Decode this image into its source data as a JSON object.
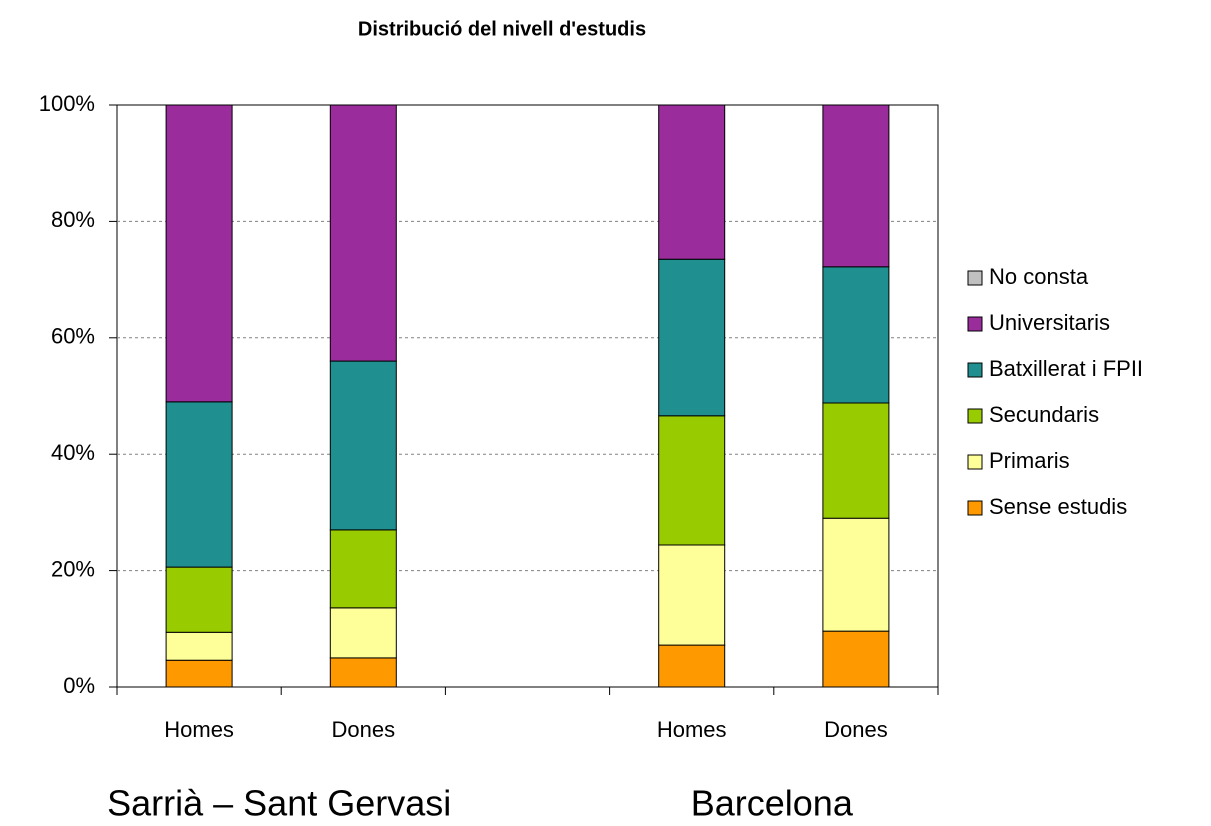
{
  "chart_data": {
    "type": "stacked_bar",
    "title": "Distribució del nivell d'estudis",
    "categories": [
      "Homes",
      "Dones",
      null,
      "Homes",
      "Dones"
    ],
    "group_labels": [
      "Sarrià – Sant Gervasi",
      "Barcelona"
    ],
    "series": [
      {
        "name": "Sense estudis",
        "color": "#ff9900",
        "values": [
          4.6,
          5.0,
          null,
          7.2,
          9.6
        ]
      },
      {
        "name": "Primaris",
        "color": "#ffff99",
        "values": [
          4.8,
          8.6,
          null,
          17.2,
          19.4
        ]
      },
      {
        "name": "Secundaris",
        "color": "#99cc00",
        "values": [
          11.2,
          13.4,
          null,
          22.2,
          19.8
        ]
      },
      {
        "name": "Batxillerat i FPII",
        "color": "#1f8f8f",
        "values": [
          28.4,
          29.0,
          null,
          26.9,
          23.4
        ]
      },
      {
        "name": "Universitaris",
        "color": "#9b2c9b",
        "values": [
          51.0,
          44.0,
          null,
          26.5,
          27.8
        ]
      },
      {
        "name": "No consta",
        "color": "#c0c0c0",
        "values": [
          0,
          0,
          null,
          0,
          0
        ]
      }
    ],
    "ylim": [
      0,
      100
    ],
    "yticks": [
      {
        "value": 0,
        "label": "0%"
      },
      {
        "value": 20,
        "label": "20%"
      },
      {
        "value": 40,
        "label": "40%"
      },
      {
        "value": 60,
        "label": "60%"
      },
      {
        "value": 80,
        "label": "80%"
      },
      {
        "value": 100,
        "label": "100%"
      }
    ],
    "grid": true
  }
}
